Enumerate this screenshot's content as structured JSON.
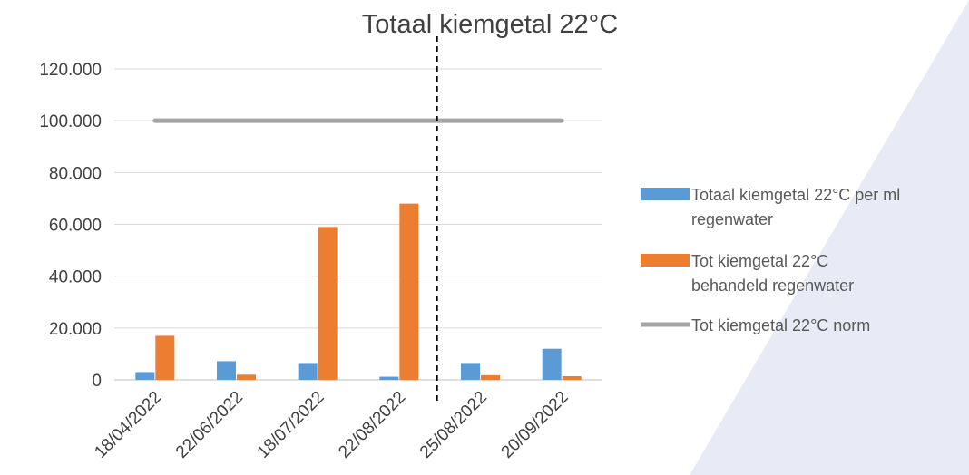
{
  "chart_data": {
    "type": "bar",
    "title": "Totaal kiemgetal 22°C",
    "categories": [
      "18/04/2022",
      "22/06/2022",
      "18/07/2022",
      "22/08/2022",
      "25/08/2022",
      "20/09/2022"
    ],
    "series": [
      {
        "name": "Totaal kiemgetal 22°C per ml regenwater",
        "type": "bar",
        "color": "#5B9BD5",
        "values": [
          3000,
          7200,
          6500,
          1200,
          6500,
          12000
        ]
      },
      {
        "name": "Tot kiemgetal 22°C behandeld regenwater",
        "type": "bar",
        "color": "#ED7D31",
        "values": [
          17000,
          2000,
          null,
          68000,
          1800,
          1400
        ]
      },
      {
        "name": "Tot kiemgetal 22°C norm",
        "type": "line",
        "color": "#A5A5A5",
        "values": [
          100000,
          100000,
          100000,
          100000,
          100000,
          100000
        ]
      }
    ],
    "behandeld_18_07": 59000,
    "yticks": [
      "0",
      "20.000",
      "40.000",
      "60.000",
      "80.000",
      "100.000",
      "120.000"
    ],
    "ylim": [
      0,
      120000
    ],
    "grid": true,
    "legend": "right",
    "annotations": [
      "dashed vertical divider between 22/08/2022 and 25/08/2022"
    ]
  }
}
